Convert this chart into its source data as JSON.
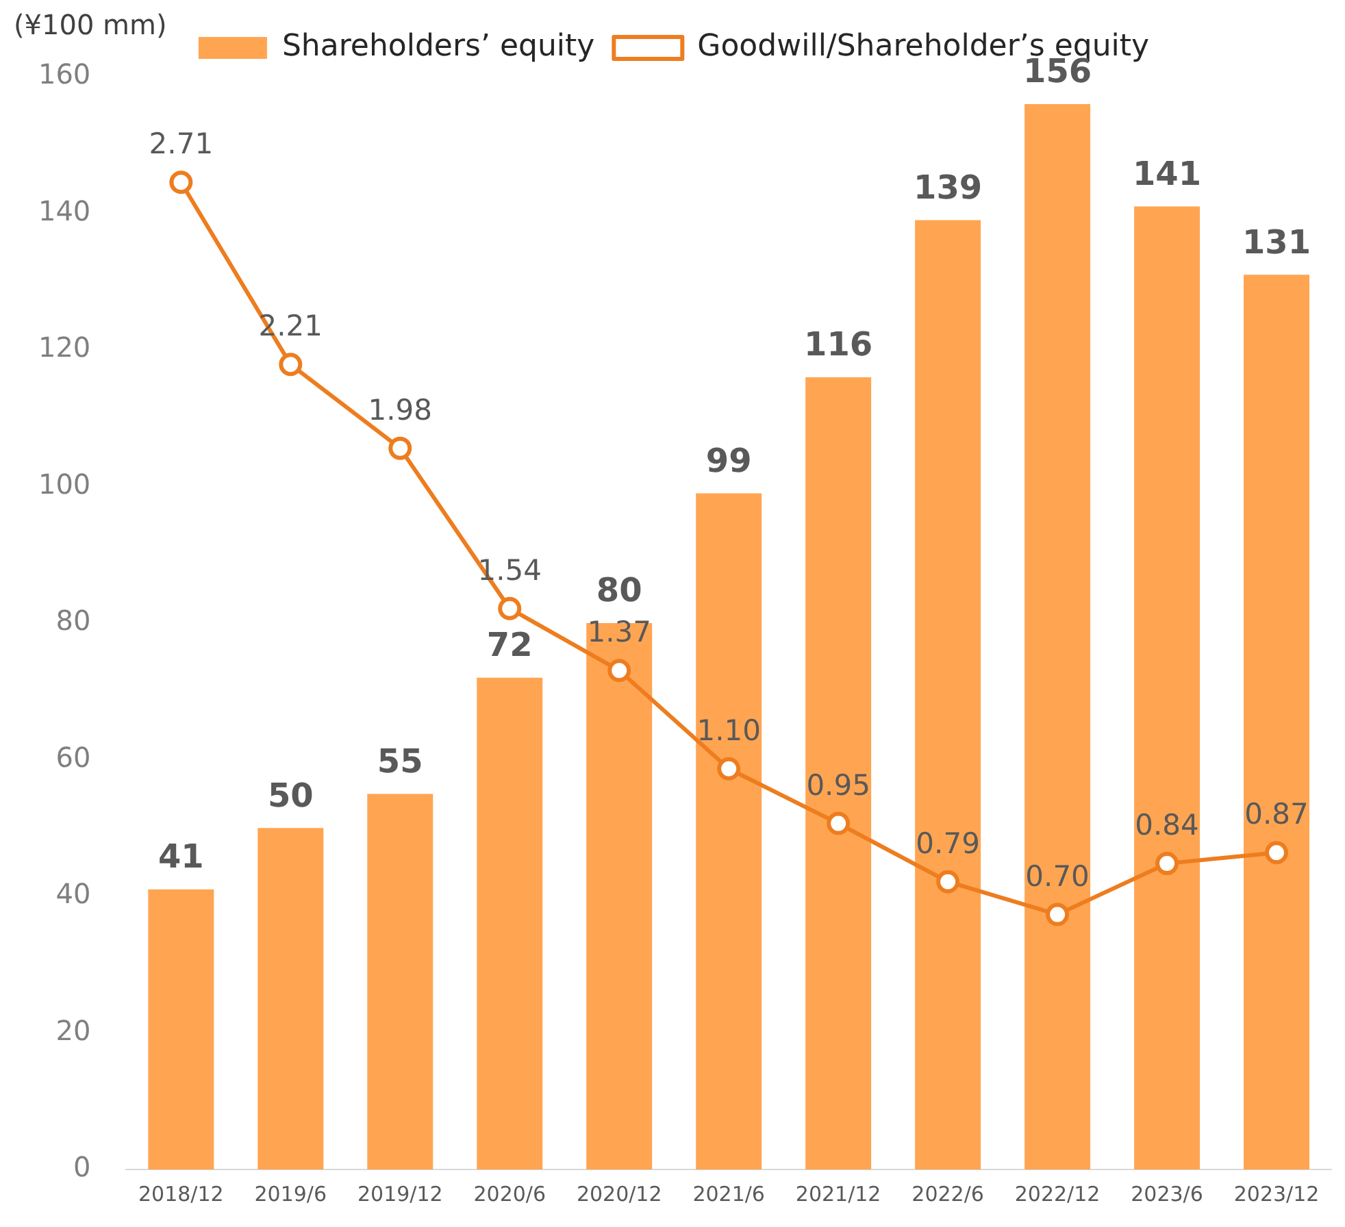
{
  "chart_data": {
    "type": "bar",
    "ylabel": "(¥100 mm)",
    "categories": [
      "2018/12",
      "2019/6",
      "2019/12",
      "2020/6",
      "2020/12",
      "2021/6",
      "2021/12",
      "2022/6",
      "2022/12",
      "2023/6",
      "2023/12"
    ],
    "series": [
      {
        "name": "Shareholders’ equity",
        "color": "#ffa552",
        "values": [
          41,
          50,
          55,
          72,
          80,
          99,
          116,
          139,
          156,
          141,
          131
        ]
      },
      {
        "name": "Goodwill/Shareholder’s equity",
        "type": "line",
        "axis": "y2",
        "color": "#ed7d1f",
        "marker": "circle",
        "values": [
          2.71,
          2.21,
          1.98,
          1.54,
          1.37,
          1.1,
          0.95,
          0.79,
          0.7,
          0.84,
          0.87
        ],
        "value_labels": [
          "2.71",
          "2.21",
          "1.98",
          "1.54",
          "1.37",
          "1.10",
          "0.95",
          "0.79",
          "0.70",
          "0.84",
          "0.87"
        ]
      }
    ],
    "ylim": [
      0,
      160
    ],
    "yticks": [
      0,
      20,
      40,
      60,
      80,
      100,
      120,
      140,
      160
    ],
    "data_labels": true,
    "legend": "top",
    "grid": false
  }
}
